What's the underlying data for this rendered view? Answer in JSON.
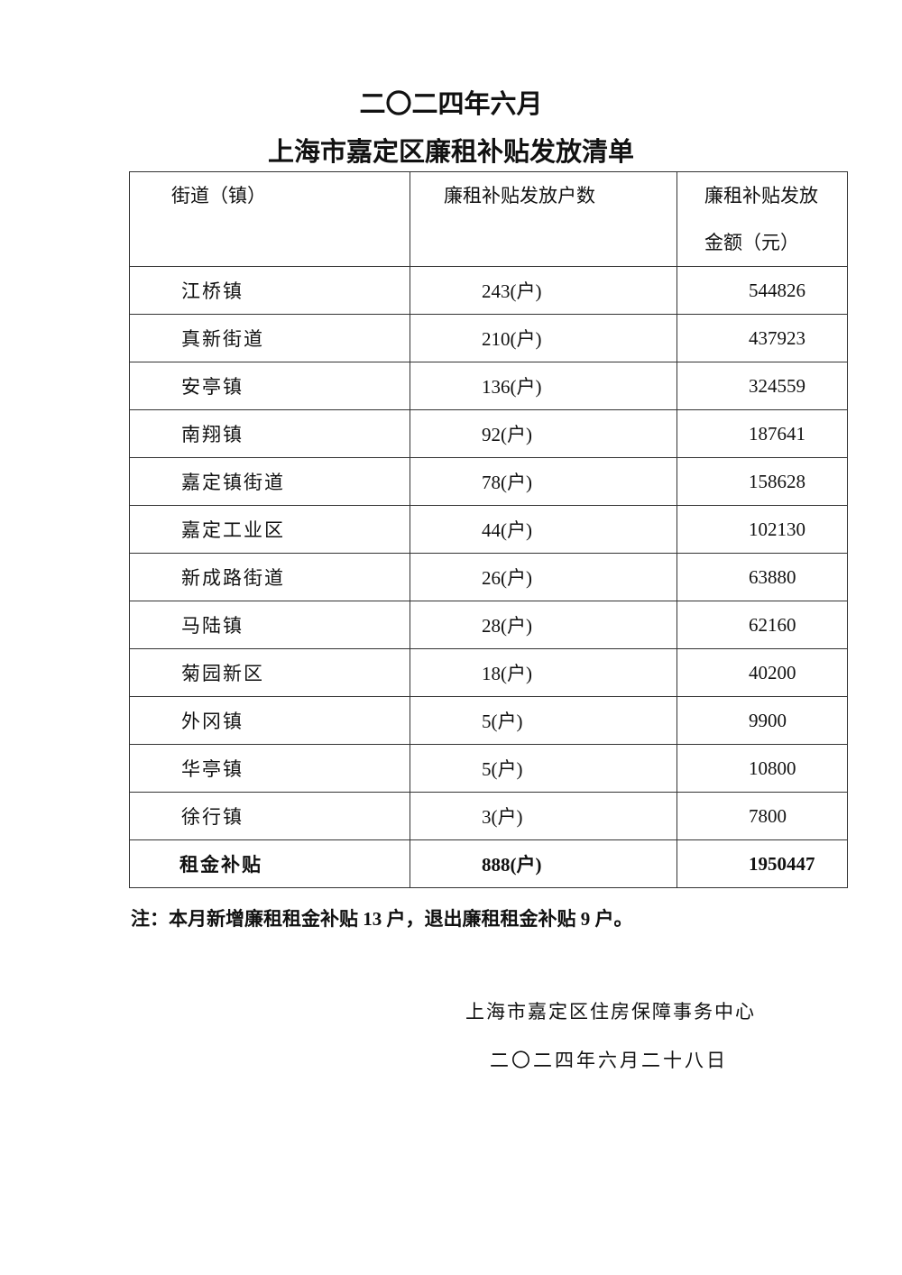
{
  "title": {
    "line1": "二〇二四年六月",
    "line2": "上海市嘉定区廉租补贴发放清单"
  },
  "table": {
    "headers": [
      "街道（镇）",
      "廉租补贴发放户数",
      "廉租补贴发放金额（元）"
    ],
    "rows": [
      {
        "name": "江桥镇",
        "households": "243(户)",
        "amount": "544826"
      },
      {
        "name": "真新街道",
        "households": "210(户)",
        "amount": "437923"
      },
      {
        "name": "安亭镇",
        "households": "136(户)",
        "amount": "324559"
      },
      {
        "name": "南翔镇",
        "households": "92(户)",
        "amount": "187641"
      },
      {
        "name": "嘉定镇街道",
        "households": "78(户)",
        "amount": "158628"
      },
      {
        "name": "嘉定工业区",
        "households": "44(户)",
        "amount": "102130"
      },
      {
        "name": "新成路街道",
        "households": "26(户)",
        "amount": "63880"
      },
      {
        "name": "马陆镇",
        "households": "28(户)",
        "amount": "62160"
      },
      {
        "name": "菊园新区",
        "households": "18(户)",
        "amount": "40200"
      },
      {
        "name": "外冈镇",
        "households": "5(户)",
        "amount": "9900"
      },
      {
        "name": "华亭镇",
        "households": "5(户)",
        "amount": "10800"
      },
      {
        "name": "徐行镇",
        "households": "3(户)",
        "amount": "7800"
      }
    ],
    "total": {
      "name": "租金补贴",
      "households": "888(户)",
      "amount": "1950447"
    }
  },
  "note": "注：本月新增廉租租金补贴 13 户，退出廉租租金补贴 9 户。",
  "footer": {
    "org": "上海市嘉定区住房保障事务中心",
    "date": "二〇二四年六月二十八日"
  }
}
